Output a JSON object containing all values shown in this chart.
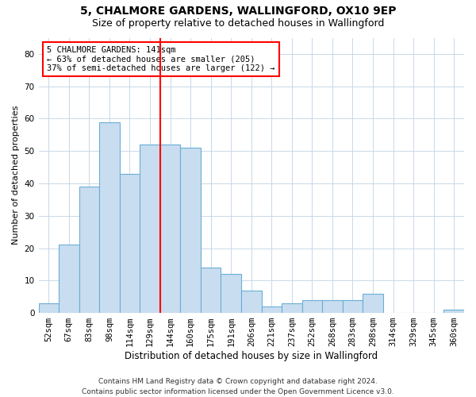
{
  "title": "5, CHALMORE GARDENS, WALLINGFORD, OX10 9EP",
  "subtitle": "Size of property relative to detached houses in Wallingford",
  "xlabel": "Distribution of detached houses by size in Wallingford",
  "ylabel": "Number of detached properties",
  "bar_labels": [
    "52sqm",
    "67sqm",
    "83sqm",
    "98sqm",
    "114sqm",
    "129sqm",
    "144sqm",
    "160sqm",
    "175sqm",
    "191sqm",
    "206sqm",
    "221sqm",
    "237sqm",
    "252sqm",
    "268sqm",
    "283sqm",
    "298sqm",
    "314sqm",
    "329sqm",
    "345sqm",
    "360sqm"
  ],
  "bar_values": [
    3,
    21,
    39,
    59,
    43,
    52,
    52,
    51,
    14,
    12,
    7,
    2,
    3,
    4,
    4,
    4,
    6,
    0,
    0,
    0,
    1
  ],
  "bar_color": "#c9ddf0",
  "bar_edgecolor": "#6aaed6",
  "vline_index": 6,
  "annotation_text": "5 CHALMORE GARDENS: 141sqm\n← 63% of detached houses are smaller (205)\n37% of semi-detached houses are larger (122) →",
  "annotation_box_edgecolor": "red",
  "vline_color": "red",
  "ylim": [
    0,
    85
  ],
  "yticks": [
    0,
    10,
    20,
    30,
    40,
    50,
    60,
    70,
    80
  ],
  "footer_line1": "Contains HM Land Registry data © Crown copyright and database right 2024.",
  "footer_line2": "Contains public sector information licensed under the Open Government Licence v3.0.",
  "title_fontsize": 10,
  "subtitle_fontsize": 9,
  "xlabel_fontsize": 8.5,
  "ylabel_fontsize": 8,
  "tick_fontsize": 7.5,
  "annotation_fontsize": 7.5,
  "footer_fontsize": 6.5
}
